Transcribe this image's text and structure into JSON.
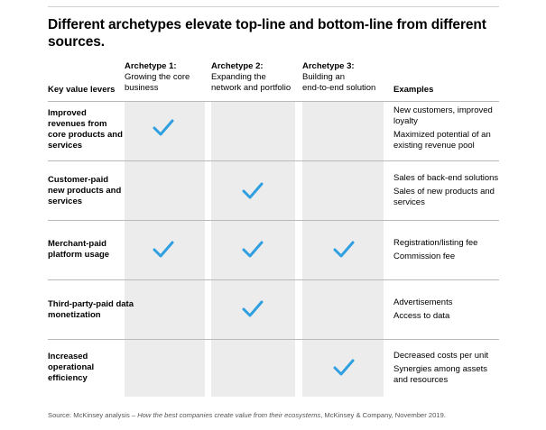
{
  "title": "Different archetypes elevate top-line and bottom-line from different sources.",
  "headers": {
    "levers": "Key value levers",
    "examples": "Examples",
    "archetypes": [
      {
        "name": "Archetype 1:",
        "desc_l1": "Growing the core",
        "desc_l2": "business"
      },
      {
        "name": "Archetype 2:",
        "desc_l1": "Expanding the",
        "desc_l2": "network and portfolio"
      },
      {
        "name": "Archetype 3:",
        "desc_l1": "Building an",
        "desc_l2": "end-to-end solution"
      }
    ]
  },
  "rows": [
    {
      "lever": "Improved revenues from core products and services",
      "checks": [
        true,
        false,
        false
      ],
      "examples": [
        "New customers, improved loyalty",
        "Maximized potential of an existing revenue pool"
      ]
    },
    {
      "lever": "Customer-paid new products and services",
      "checks": [
        false,
        true,
        false
      ],
      "examples": [
        "Sales of back-end solutions",
        "Sales of new products and services"
      ]
    },
    {
      "lever": "Merchant-paid platform usage",
      "checks": [
        true,
        true,
        true
      ],
      "examples": [
        "Registration/listing fee",
        "Commission fee"
      ]
    },
    {
      "lever": "Third-party-paid data monetization",
      "checks": [
        false,
        true,
        false
      ],
      "examples": [
        "Advertisements",
        "Access to data"
      ]
    },
    {
      "lever": "Increased operational efficiency",
      "checks": [
        false,
        false,
        true
      ],
      "examples": [
        "Decreased costs per unit",
        "Synergies among assets and resources"
      ]
    }
  ],
  "source": {
    "prefix": "Source: McKinsey analysis – ",
    "title": "How the best companies create value from their ecosystems",
    "suffix": ", McKinsey & Company, November 2019."
  },
  "colors": {
    "check": "#2f9fe0",
    "column_bg": "#ececec",
    "rule": "#b9b9b9"
  },
  "icons": {
    "check": "check-icon"
  }
}
